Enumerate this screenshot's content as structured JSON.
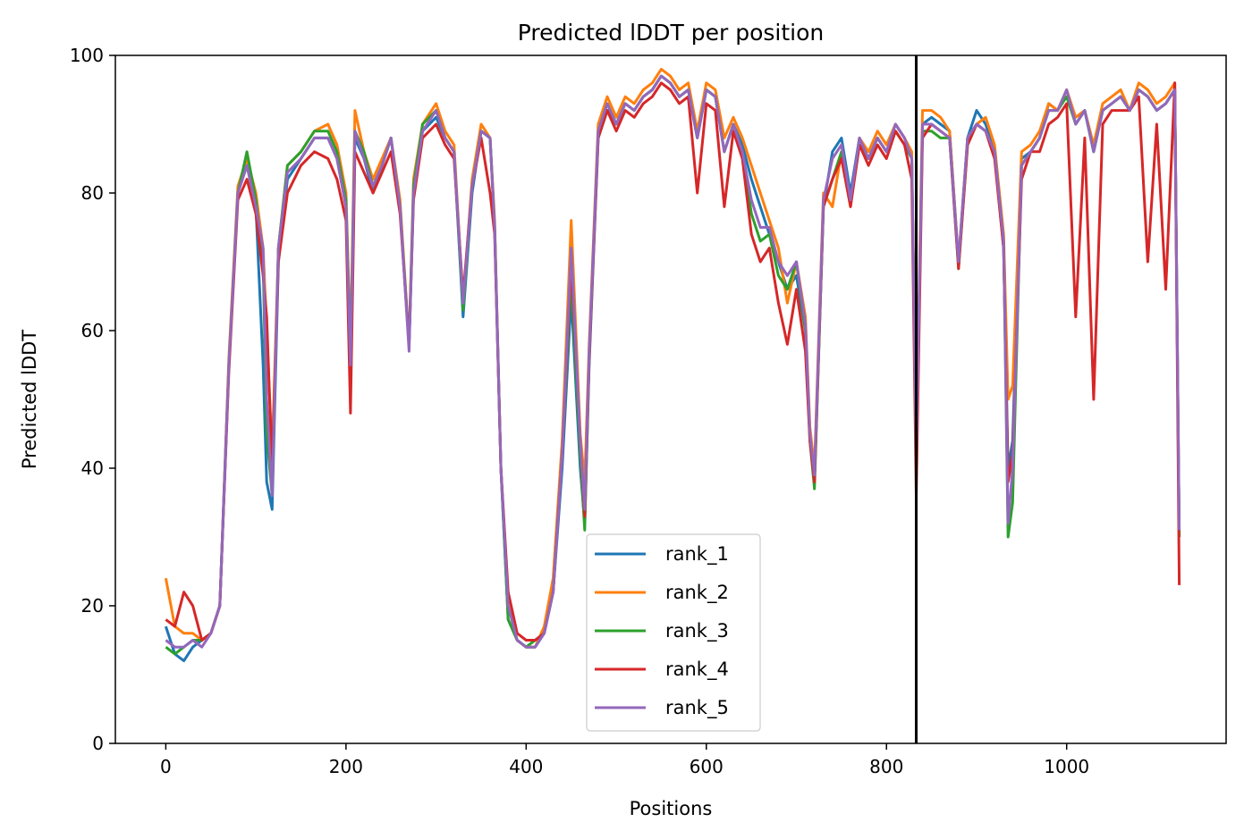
{
  "chart_data": {
    "type": "line",
    "title": "Predicted lDDT per position",
    "xlabel": "Positions",
    "ylabel": "Predicted lDDT",
    "xlim": [
      -56,
      1177
    ],
    "ylim": [
      0,
      100
    ],
    "x_ticks": [
      0,
      200,
      400,
      600,
      800,
      1000
    ],
    "y_ticks": [
      0,
      20,
      40,
      60,
      80,
      100
    ],
    "grid": false,
    "legend_position": "lower-center",
    "vertical_line": {
      "x": 833,
      "color": "#000000"
    },
    "x": [
      0,
      10,
      20,
      30,
      40,
      50,
      60,
      70,
      80,
      90,
      100,
      108,
      112,
      118,
      125,
      135,
      150,
      165,
      180,
      190,
      200,
      205,
      210,
      220,
      230,
      240,
      250,
      260,
      270,
      275,
      285,
      300,
      310,
      320,
      330,
      340,
      350,
      360,
      365,
      372,
      380,
      390,
      400,
      410,
      420,
      430,
      440,
      450,
      460,
      465,
      470,
      480,
      490,
      500,
      510,
      520,
      530,
      540,
      550,
      560,
      570,
      580,
      590,
      600,
      610,
      620,
      630,
      640,
      650,
      660,
      670,
      680,
      690,
      700,
      710,
      715,
      720,
      730,
      740,
      750,
      760,
      770,
      780,
      790,
      800,
      810,
      820,
      828,
      833,
      840,
      850,
      860,
      870,
      880,
      890,
      900,
      910,
      920,
      930,
      935,
      940,
      950,
      960,
      970,
      980,
      990,
      1000,
      1010,
      1020,
      1030,
      1040,
      1050,
      1060,
      1070,
      1080,
      1090,
      1100,
      1110,
      1120,
      1125
    ],
    "series": [
      {
        "name": "rank_1",
        "color": "#1f77b4",
        "values": [
          17,
          13,
          12,
          14,
          15,
          16,
          20,
          55,
          80,
          84,
          78,
          55,
          38,
          34,
          70,
          82,
          85,
          88,
          88,
          85,
          78,
          55,
          88,
          85,
          80,
          84,
          88,
          78,
          58,
          80,
          89,
          91,
          88,
          86,
          62,
          80,
          89,
          88,
          75,
          40,
          18,
          15,
          14,
          14,
          16,
          22,
          40,
          65,
          40,
          32,
          55,
          88,
          92,
          90,
          93,
          92,
          94,
          95,
          97,
          96,
          94,
          95,
          88,
          95,
          94,
          86,
          90,
          87,
          82,
          78,
          74,
          70,
          66,
          68,
          60,
          45,
          38,
          78,
          86,
          88,
          80,
          88,
          85,
          88,
          86,
          90,
          88,
          85,
          42,
          90,
          91,
          90,
          89,
          70,
          88,
          92,
          90,
          86,
          72,
          40,
          44,
          85,
          86,
          88,
          93,
          92,
          95,
          90,
          92,
          86,
          92,
          93,
          94,
          92,
          95,
          94,
          92,
          93,
          95,
          30
        ]
      },
      {
        "name": "rank_2",
        "color": "#ff7f0e",
        "values": [
          24,
          17,
          16,
          16,
          15,
          16,
          20,
          56,
          81,
          85,
          80,
          72,
          60,
          42,
          72,
          84,
          86,
          89,
          90,
          87,
          80,
          58,
          92,
          86,
          82,
          85,
          88,
          79,
          58,
          82,
          90,
          93,
          89,
          87,
          64,
          82,
          90,
          88,
          76,
          40,
          20,
          15,
          14,
          14,
          17,
          24,
          44,
          76,
          45,
          38,
          58,
          90,
          94,
          91,
          94,
          93,
          95,
          96,
          98,
          97,
          95,
          96,
          89,
          96,
          95,
          88,
          91,
          88,
          84,
          80,
          76,
          72,
          64,
          70,
          62,
          46,
          40,
          80,
          78,
          86,
          78,
          88,
          86,
          89,
          87,
          90,
          88,
          86,
          44,
          92,
          92,
          91,
          89,
          70,
          88,
          90,
          91,
          87,
          74,
          50,
          52,
          86,
          87,
          89,
          93,
          92,
          95,
          91,
          92,
          87,
          93,
          94,
          95,
          92,
          96,
          95,
          93,
          94,
          96,
          30
        ]
      },
      {
        "name": "rank_3",
        "color": "#2ca02c",
        "values": [
          14,
          13,
          14,
          15,
          15,
          16,
          20,
          55,
          80,
          86,
          79,
          70,
          45,
          36,
          72,
          84,
          86,
          89,
          89,
          86,
          79,
          56,
          89,
          86,
          81,
          84,
          88,
          78,
          58,
          81,
          90,
          92,
          88,
          86,
          63,
          81,
          89,
          88,
          75,
          40,
          18,
          15,
          14,
          15,
          16,
          22,
          42,
          68,
          42,
          31,
          56,
          89,
          93,
          90,
          93,
          92,
          94,
          95,
          97,
          96,
          94,
          95,
          88,
          95,
          94,
          86,
          90,
          86,
          77,
          73,
          74,
          68,
          66,
          70,
          60,
          44,
          37,
          78,
          82,
          86,
          79,
          87,
          85,
          88,
          86,
          89,
          87,
          85,
          42,
          89,
          89,
          88,
          88,
          69,
          87,
          90,
          89,
          86,
          73,
          30,
          35,
          84,
          86,
          88,
          92,
          92,
          94,
          90,
          92,
          86,
          92,
          93,
          94,
          92,
          95,
          94,
          92,
          93,
          95,
          30
        ]
      },
      {
        "name": "rank_4",
        "color": "#d62728",
        "values": [
          18,
          17,
          22,
          20,
          15,
          16,
          20,
          54,
          79,
          82,
          77,
          68,
          62,
          40,
          70,
          80,
          84,
          86,
          85,
          82,
          76,
          48,
          86,
          83,
          80,
          83,
          86,
          77,
          58,
          79,
          88,
          90,
          87,
          85,
          65,
          81,
          88,
          80,
          74,
          40,
          22,
          16,
          15,
          15,
          16,
          22,
          42,
          70,
          44,
          33,
          56,
          88,
          92,
          89,
          92,
          91,
          93,
          94,
          96,
          95,
          93,
          94,
          80,
          93,
          92,
          78,
          89,
          85,
          74,
          70,
          72,
          64,
          58,
          66,
          57,
          44,
          38,
          78,
          82,
          85,
          78,
          87,
          84,
          87,
          85,
          89,
          87,
          82,
          36,
          88,
          90,
          89,
          88,
          69,
          87,
          90,
          89,
          85,
          72,
          38,
          42,
          82,
          86,
          86,
          90,
          91,
          93,
          62,
          88,
          50,
          90,
          92,
          92,
          92,
          94,
          70,
          90,
          66,
          96,
          23
        ]
      },
      {
        "name": "rank_5",
        "color": "#9467bd",
        "values": [
          15,
          14,
          14,
          15,
          14,
          16,
          20,
          55,
          80,
          84,
          78,
          72,
          50,
          36,
          72,
          83,
          85,
          88,
          88,
          85,
          78,
          55,
          89,
          85,
          81,
          84,
          88,
          78,
          57,
          80,
          89,
          92,
          88,
          86,
          64,
          81,
          89,
          88,
          75,
          40,
          20,
          15,
          14,
          14,
          16,
          22,
          42,
          72,
          44,
          34,
          57,
          89,
          93,
          90,
          93,
          92,
          94,
          95,
          97,
          96,
          94,
          95,
          88,
          95,
          94,
          86,
          90,
          86,
          79,
          75,
          75,
          70,
          68,
          70,
          61,
          45,
          39,
          79,
          85,
          87,
          79,
          88,
          85,
          88,
          86,
          90,
          88,
          85,
          42,
          90,
          90,
          89,
          88,
          70,
          88,
          90,
          89,
          86,
          73,
          32,
          40,
          84,
          86,
          88,
          92,
          92,
          95,
          90,
          92,
          86,
          92,
          93,
          94,
          92,
          95,
          94,
          92,
          93,
          95,
          31
        ]
      }
    ]
  }
}
